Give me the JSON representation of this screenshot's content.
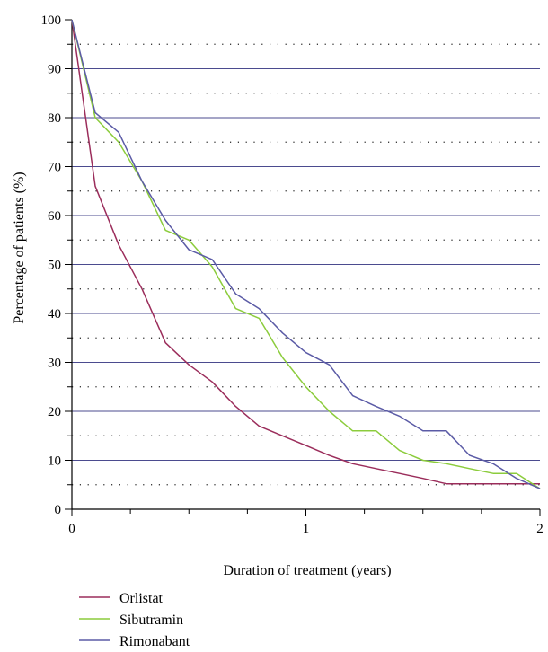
{
  "chart_data": {
    "type": "line",
    "title": "",
    "xlabel": "Duration of treatment (years)",
    "ylabel": "Percentage of patients (%)",
    "xlim": [
      0,
      2
    ],
    "ylim": [
      0,
      100
    ],
    "x_ticks": [
      "0",
      "1",
      "2"
    ],
    "y_ticks": [
      "0",
      "10",
      "20",
      "30",
      "40",
      "50",
      "60",
      "70",
      "80",
      "90",
      "100"
    ],
    "grid": "major solid horizontal lines every 10, dotted lines at 5, 15, ... 95",
    "legend_position": "bottom-left",
    "series": [
      {
        "name": "Orlistat",
        "color": "#9b2d5b",
        "points": [
          [
            0,
            100
          ],
          [
            0.1,
            66
          ],
          [
            0.2,
            54
          ],
          [
            0.3,
            45
          ],
          [
            0.4,
            34
          ],
          [
            0.5,
            29.5
          ],
          [
            0.6,
            26
          ],
          [
            0.7,
            21
          ],
          [
            0.8,
            17
          ],
          [
            0.9,
            15
          ],
          [
            1.0,
            13
          ],
          [
            1.1,
            11
          ],
          [
            1.2,
            9.3
          ],
          [
            1.3,
            8.3
          ],
          [
            1.4,
            7.3
          ],
          [
            1.5,
            6.3
          ],
          [
            1.6,
            5.2
          ],
          [
            1.7,
            5.2
          ],
          [
            1.8,
            5.2
          ],
          [
            1.9,
            5.2
          ],
          [
            2.0,
            5.2
          ]
        ]
      },
      {
        "name": "Sibutramin",
        "color": "#8ccc3c",
        "points": [
          [
            0,
            100
          ],
          [
            0.1,
            80
          ],
          [
            0.2,
            75
          ],
          [
            0.3,
            67
          ],
          [
            0.4,
            57
          ],
          [
            0.5,
            55
          ],
          [
            0.6,
            49.5
          ],
          [
            0.7,
            41
          ],
          [
            0.8,
            39
          ],
          [
            0.9,
            31
          ],
          [
            1.0,
            25
          ],
          [
            1.1,
            20
          ],
          [
            1.2,
            16
          ],
          [
            1.3,
            16
          ],
          [
            1.4,
            12
          ],
          [
            1.5,
            10
          ],
          [
            1.6,
            9.3
          ],
          [
            1.7,
            8.3
          ],
          [
            1.8,
            7.3
          ],
          [
            1.9,
            7.3
          ],
          [
            2.0,
            4.2
          ]
        ]
      },
      {
        "name": "Rimonabant",
        "color": "#5b5ba6",
        "points": [
          [
            0,
            100
          ],
          [
            0.1,
            81
          ],
          [
            0.2,
            77
          ],
          [
            0.3,
            67
          ],
          [
            0.4,
            59
          ],
          [
            0.5,
            53
          ],
          [
            0.6,
            51
          ],
          [
            0.7,
            44
          ],
          [
            0.8,
            41
          ],
          [
            0.9,
            36
          ],
          [
            1.0,
            32
          ],
          [
            1.1,
            29.5
          ],
          [
            1.2,
            23.2
          ],
          [
            1.3,
            21
          ],
          [
            1.4,
            19
          ],
          [
            1.5,
            16
          ],
          [
            1.6,
            16
          ],
          [
            1.7,
            11
          ],
          [
            1.8,
            9.3
          ],
          [
            1.9,
            6.3
          ],
          [
            2.0,
            4.2
          ]
        ]
      }
    ]
  }
}
